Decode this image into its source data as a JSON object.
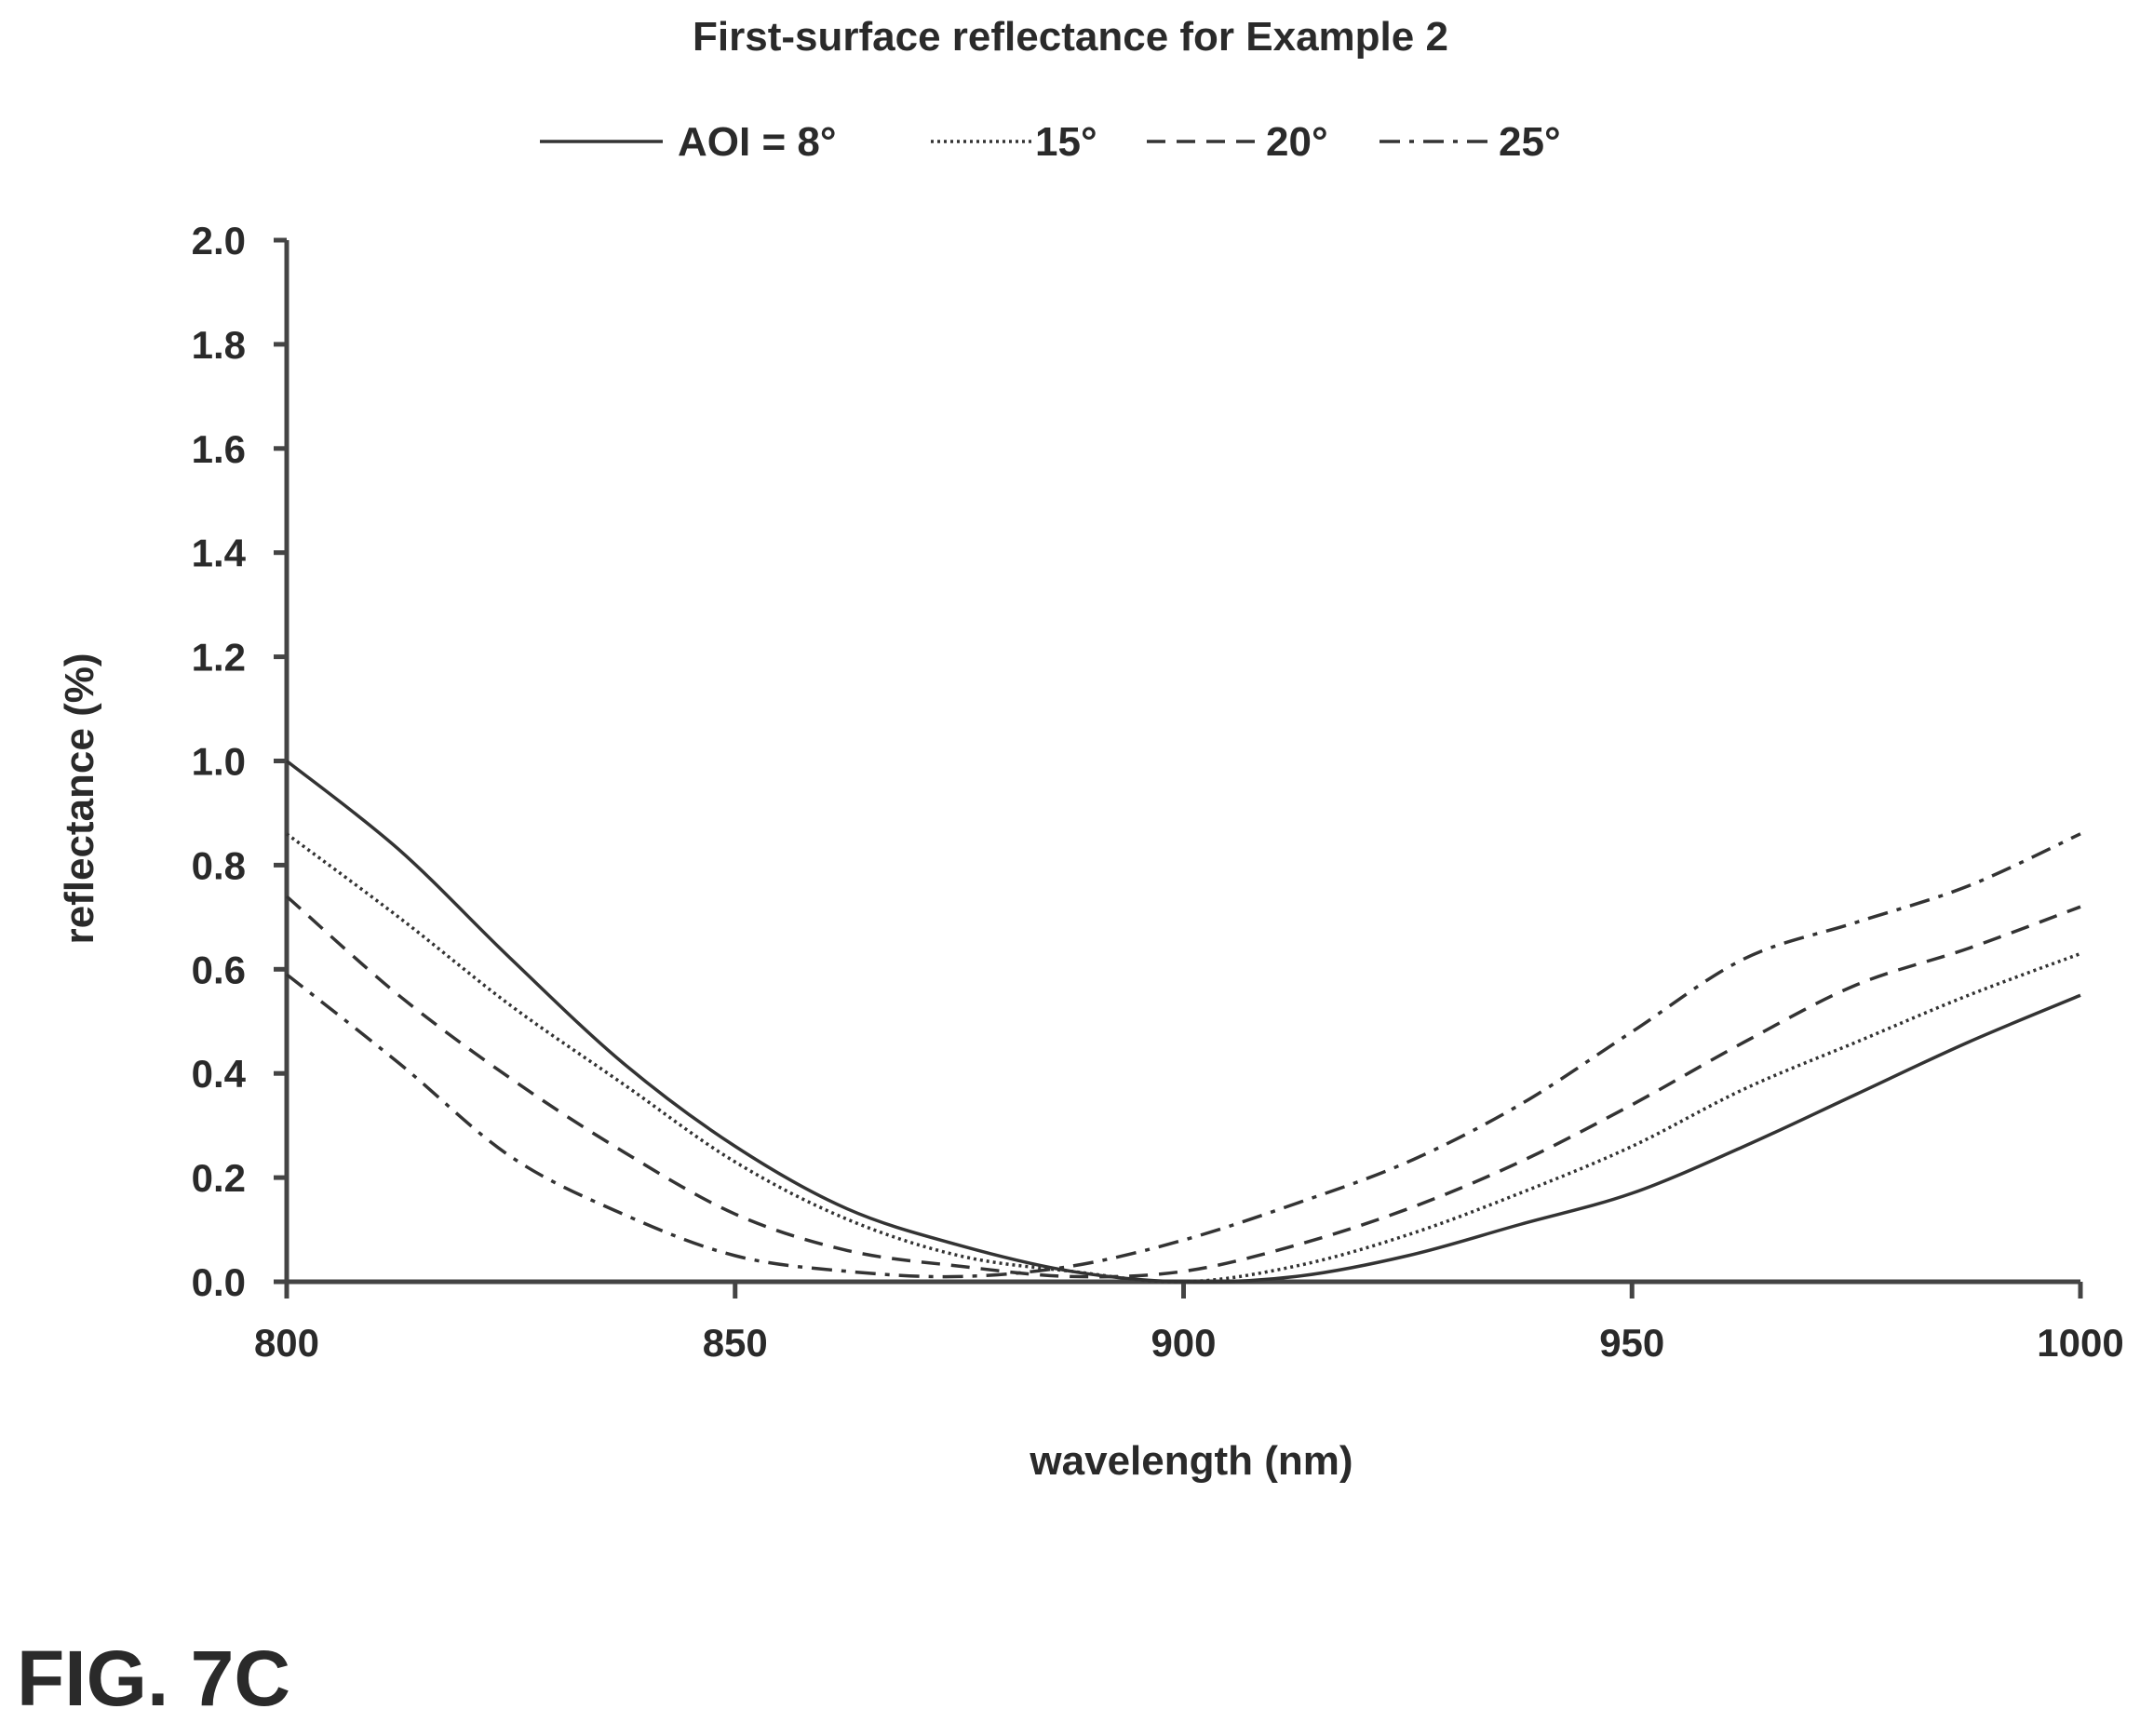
{
  "figure_label": "FIG. 7C",
  "chart_data": {
    "type": "line",
    "title": "First-surface reflectance for Example 2",
    "xlabel": "wavelength (nm)",
    "ylabel": "reflectance (%)",
    "xlim": [
      800,
      1000
    ],
    "ylim": [
      0.0,
      2.0
    ],
    "xticks": [
      "800",
      "850",
      "900",
      "950",
      "1000"
    ],
    "yticks": [
      "0.0",
      "0.2",
      "0.4",
      "0.6",
      "0.8",
      "1.0",
      "1.2",
      "1.4",
      "1.6",
      "1.8",
      "2.0"
    ],
    "grid": false,
    "legend_position": "top",
    "x": [
      800,
      812.5,
      825,
      837.5,
      850,
      862.5,
      875,
      887.5,
      900,
      912.5,
      925,
      937.5,
      950,
      962.5,
      975,
      987.5,
      1000
    ],
    "series": [
      {
        "name": "AOI = 8°",
        "line_style": "solid",
        "values": [
          1.0,
          0.83,
          0.62,
          0.42,
          0.26,
          0.14,
          0.07,
          0.02,
          0.0,
          0.01,
          0.05,
          0.11,
          0.17,
          0.26,
          0.36,
          0.46,
          0.55
        ]
      },
      {
        "name": "15°",
        "line_style": "dotted",
        "values": [
          0.86,
          0.7,
          0.53,
          0.38,
          0.23,
          0.12,
          0.05,
          0.02,
          0.0,
          0.03,
          0.09,
          0.17,
          0.26,
          0.37,
          0.46,
          0.55,
          0.63
        ]
      },
      {
        "name": "20°",
        "line_style": "dashed",
        "values": [
          0.74,
          0.55,
          0.39,
          0.25,
          0.13,
          0.06,
          0.03,
          0.01,
          0.02,
          0.07,
          0.14,
          0.23,
          0.34,
          0.46,
          0.57,
          0.64,
          0.72
        ]
      },
      {
        "name": "25°",
        "line_style": "dash-dot",
        "values": [
          0.59,
          0.42,
          0.24,
          0.13,
          0.05,
          0.02,
          0.01,
          0.03,
          0.08,
          0.15,
          0.23,
          0.34,
          0.48,
          0.62,
          0.69,
          0.76,
          0.86
        ]
      }
    ]
  }
}
